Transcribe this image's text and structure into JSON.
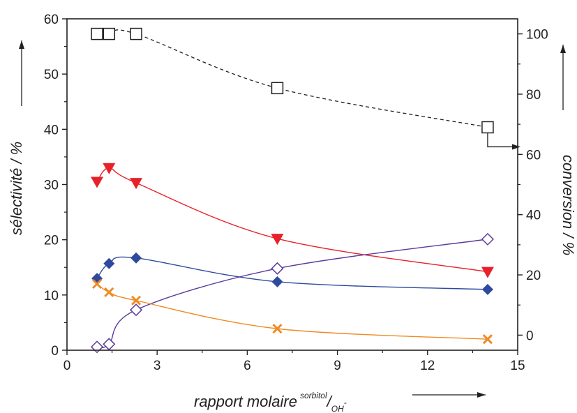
{
  "chart_data": {
    "type": "scatter",
    "xlabel": {
      "main": "rapport molaire",
      "sup": "sorbitol",
      "slash": "/",
      "sub": "OH",
      "sub_sup": "-"
    },
    "ylabel_left": "sélectivité / %",
    "ylabel_right": "conversion / %",
    "xlim": [
      0,
      15
    ],
    "ylim_left": [
      0,
      60
    ],
    "ylim_right": [
      -5,
      105
    ],
    "x_ticks": [
      "0",
      "3",
      "6",
      "9",
      "12",
      "15"
    ],
    "y_left_ticks": [
      "0",
      "10",
      "20",
      "30",
      "40",
      "50",
      "60"
    ],
    "y_right_ticks": [
      "0",
      "20",
      "40",
      "60",
      "80",
      "100"
    ],
    "grid": false,
    "series": [
      {
        "marker": "open-square",
        "axis": "right",
        "line": "dashed",
        "color": "#231f20",
        "x": [
          1.0,
          1.4,
          2.3,
          7.0,
          14.0
        ],
        "y": [
          100,
          100,
          100,
          82,
          69
        ]
      },
      {
        "marker": "filled-triangle-down",
        "axis": "left",
        "line": "smooth",
        "color": "#e8202a",
        "x": [
          1.0,
          1.4,
          2.3,
          7.0,
          14.0
        ],
        "y": [
          30.5,
          33.0,
          30.3,
          20.2,
          14.2
        ]
      },
      {
        "marker": "filled-diamond",
        "axis": "left",
        "line": "smooth",
        "color": "#2e4a9e",
        "x": [
          1.0,
          1.4,
          2.3,
          7.0,
          14.0
        ],
        "y": [
          13.0,
          15.7,
          16.7,
          12.4,
          11.0
        ]
      },
      {
        "marker": "open-diamond",
        "axis": "left",
        "line": "smooth",
        "color": "#5a3b9a",
        "x": [
          1.0,
          1.4,
          2.3,
          7.0,
          14.0
        ],
        "y": [
          0.6,
          1.1,
          7.3,
          14.8,
          20.1
        ]
      },
      {
        "marker": "x-cross",
        "axis": "left",
        "line": "smooth",
        "color": "#f08a24",
        "x": [
          1.0,
          1.4,
          2.3,
          7.0,
          14.0
        ],
        "y": [
          12.0,
          10.5,
          9.0,
          3.9,
          2.0
        ]
      }
    ]
  }
}
